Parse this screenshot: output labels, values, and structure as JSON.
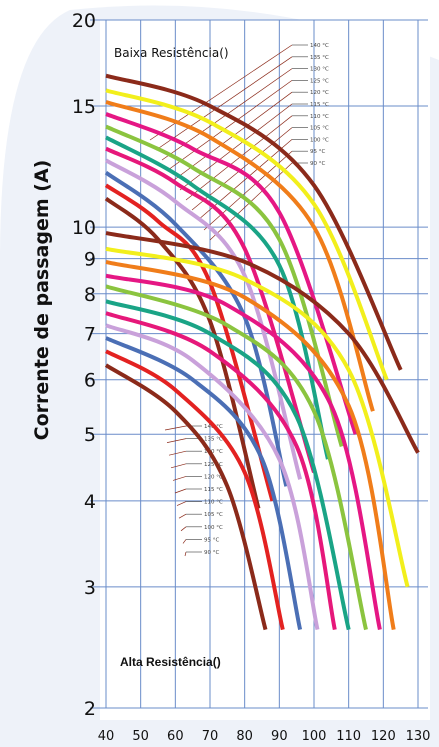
{
  "chart_data": {
    "type": "line",
    "title": "",
    "xlabel": "",
    "ylabel": "Corrente de passagem (A)",
    "x_ticks": [
      40,
      50,
      60,
      70,
      80,
      90,
      100,
      110,
      120,
      130
    ],
    "y_ticks": [
      20,
      15,
      10,
      9,
      8,
      7,
      6,
      5,
      4,
      3,
      2
    ],
    "xlim": [
      40,
      130
    ],
    "ylim": [
      2,
      20
    ],
    "yscale": "log",
    "grid": true,
    "annotations": {
      "top": "Baixa Resistência()",
      "bottom": "Alta Resistência()"
    },
    "groups": [
      {
        "name": "Baixa Resistência",
        "leader_labels": [
          "140 °C",
          "135 °C",
          "130 °C",
          "125 °C",
          "120 °C",
          "115 °C",
          "110 °C",
          "105 °C",
          "100 °C",
          "95 °C",
          "90 °C"
        ],
        "series": [
          {
            "color": "#8B2A1A",
            "x": [
              40,
              70,
              100,
              125
            ],
            "y": [
              16.6,
              15.0,
              11.5,
              6.2
            ]
          },
          {
            "color": "#F2EF1C",
            "x": [
              40,
              70,
              100,
              121
            ],
            "y": [
              15.8,
              14.2,
              10.8,
              6.0
            ]
          },
          {
            "color": "#F07D1A",
            "x": [
              40,
              70,
              100,
              117
            ],
            "y": [
              15.2,
              13.5,
              10.0,
              5.4
            ]
          },
          {
            "color": "#E51784",
            "x": [
              40,
              65,
              90,
              112
            ],
            "y": [
              14.6,
              13.0,
              10.5,
              5.0
            ]
          },
          {
            "color": "#8BC43F",
            "x": [
              40,
              65,
              90,
              108
            ],
            "y": [
              14.0,
              12.2,
              9.6,
              4.8
            ]
          },
          {
            "color": "#1AA486",
            "x": [
              40,
              65,
              90,
              104
            ],
            "y": [
              13.5,
              11.5,
              8.8,
              4.6
            ]
          },
          {
            "color": "#E6187A",
            "x": [
              40,
              60,
              80,
              100
            ],
            "y": [
              13.0,
              11.6,
              9.3,
              4.4
            ]
          },
          {
            "color": "#C9A1DA",
            "x": [
              40,
              60,
              80,
              96
            ],
            "y": [
              12.5,
              10.9,
              8.5,
              4.3
            ]
          },
          {
            "color": "#4B6FB5",
            "x": [
              40,
              60,
              80,
              92
            ],
            "y": [
              12.0,
              10.1,
              7.4,
              4.2
            ]
          },
          {
            "color": "#E32221",
            "x": [
              40,
              55,
              70,
              88
            ],
            "y": [
              11.5,
              10.2,
              8.3,
              4.0
            ]
          },
          {
            "color": "#8B2A1A",
            "x": [
              40,
              55,
              70,
              84
            ],
            "y": [
              11.0,
              9.6,
              7.3,
              3.9
            ]
          }
        ]
      },
      {
        "name": "Alta Resistência",
        "leader_labels": [
          "140 °C",
          "135 °C",
          "130 °C",
          "125 °C",
          "120 °C",
          "115 °C",
          "110 °C",
          "105 °C",
          "100 °C",
          "95 °C",
          "90 °C"
        ],
        "series": [
          {
            "color": "#8B2A1A",
            "x": [
              40,
              80,
              110,
              130
            ],
            "y": [
              9.8,
              8.9,
              7.0,
              4.7
            ]
          },
          {
            "color": "#F2EF1C",
            "x": [
              40,
              80,
              110,
              127
            ],
            "y": [
              9.3,
              8.4,
              6.2,
              3.0
            ]
          },
          {
            "color": "#F07D1A",
            "x": [
              40,
              80,
              110,
              123
            ],
            "y": [
              8.9,
              7.9,
              5.5,
              2.6
            ]
          },
          {
            "color": "#E51784",
            "x": [
              40,
              75,
              105,
              119
            ],
            "y": [
              8.5,
              7.7,
              5.5,
              2.6
            ]
          },
          {
            "color": "#8BC43F",
            "x": [
              40,
              75,
              100,
              115
            ],
            "y": [
              8.2,
              7.2,
              5.4,
              2.6
            ]
          },
          {
            "color": "#1AA486",
            "x": [
              40,
              70,
              95,
              110
            ],
            "y": [
              7.8,
              7.0,
              5.3,
              2.6
            ]
          },
          {
            "color": "#E6187A",
            "x": [
              40,
              70,
              95,
              106
            ],
            "y": [
              7.5,
              6.6,
              4.8,
              2.6
            ]
          },
          {
            "color": "#C9A1DA",
            "x": [
              40,
              65,
              90,
              101
            ],
            "y": [
              7.2,
              6.4,
              4.6,
              2.6
            ]
          },
          {
            "color": "#4B6FB5",
            "x": [
              40,
              65,
              85,
              96
            ],
            "y": [
              6.9,
              6.0,
              4.6,
              2.6
            ]
          },
          {
            "color": "#E32221",
            "x": [
              40,
              60,
              80,
              91
            ],
            "y": [
              6.6,
              5.8,
              4.4,
              2.6
            ]
          },
          {
            "color": "#8B2A1A",
            "x": [
              40,
              60,
              75,
              86
            ],
            "y": [
              6.3,
              5.4,
              4.2,
              2.6
            ]
          }
        ]
      }
    ],
    "colors": {
      "grid_blue": "#6A8CC9",
      "bubble": "#EEF2F9"
    }
  }
}
